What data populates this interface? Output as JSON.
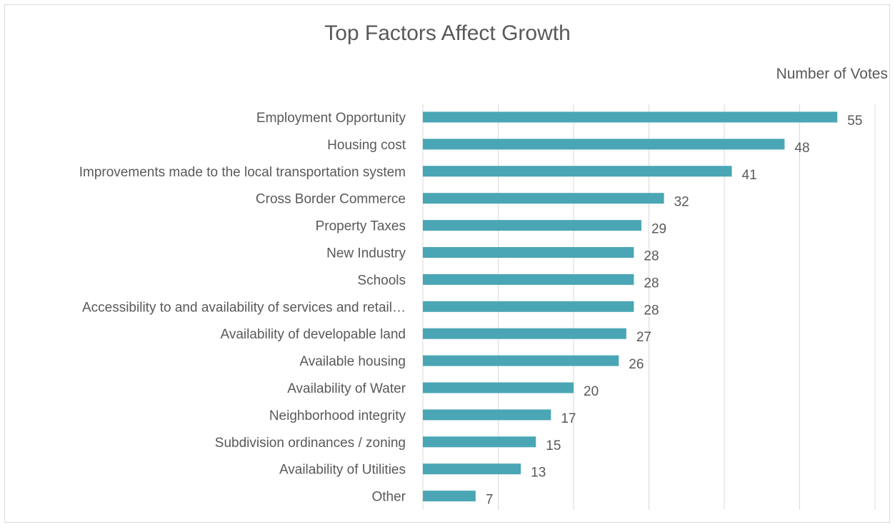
{
  "chart_data": {
    "type": "bar",
    "orientation": "horizontal",
    "title": "Top Factors Affect Growth",
    "xlabel": "Number of Votes",
    "ylabel": "",
    "xlim": [
      0,
      60
    ],
    "grid": true,
    "legend": "none",
    "categories": [
      "Employment Opportunity",
      "Housing cost",
      "Improvements made to the local transportation system",
      "Cross Border Commerce",
      "Property Taxes",
      "New Industry",
      "Schools",
      "Accessibility to and availability of services and retail…",
      "Availability of developable land",
      "Available housing",
      "Availability of Water",
      "Neighborhood integrity",
      "Subdivision ordinances / zoning",
      "Availability of Utilities",
      "Other"
    ],
    "values": [
      55,
      48,
      41,
      32,
      29,
      28,
      28,
      28,
      27,
      26,
      20,
      17,
      15,
      13,
      7
    ],
    "colors": {
      "bar": "#4aa6b4",
      "grid": "#d9d9d9",
      "text": "#595959"
    }
  }
}
